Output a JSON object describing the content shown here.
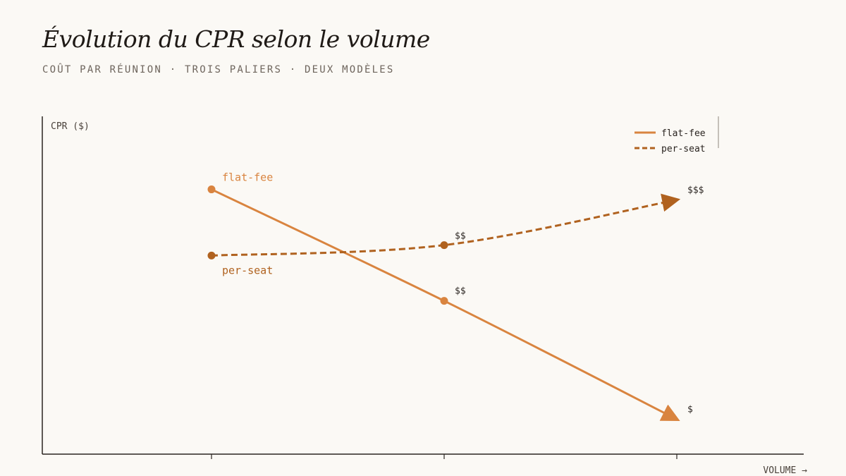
{
  "header": {
    "title": "Évolution du CPR selon le volume",
    "subtitle": "COÛT PAR RÉUNION · TROIS PALIERS · DEUX MODÈLES"
  },
  "chart_data": {
    "type": "line",
    "title": "Évolution du CPR selon le volume",
    "subtitle": "COÛT PAR RÉUNION · TROIS PALIERS · DEUX MODÈLES",
    "ylabel": "CPR ($)",
    "xlabel": "VOLUME →",
    "x": [
      1,
      2,
      3
    ],
    "ylim": [
      0,
      10
    ],
    "legend": "top-right",
    "grid": false,
    "series": [
      {
        "name": "flat-fee",
        "values": [
          7.6,
          4.4,
          1.0
        ],
        "point_labels": [
          "flat-fee",
          "$$",
          "$"
        ],
        "color": "#d9843f",
        "dash": false
      },
      {
        "name": "per-seat",
        "values": [
          5.7,
          6.0,
          7.3
        ],
        "point_labels": [
          "per-seat",
          "$$",
          "$$$"
        ],
        "color": "#b0621f",
        "dash": true
      }
    ]
  }
}
